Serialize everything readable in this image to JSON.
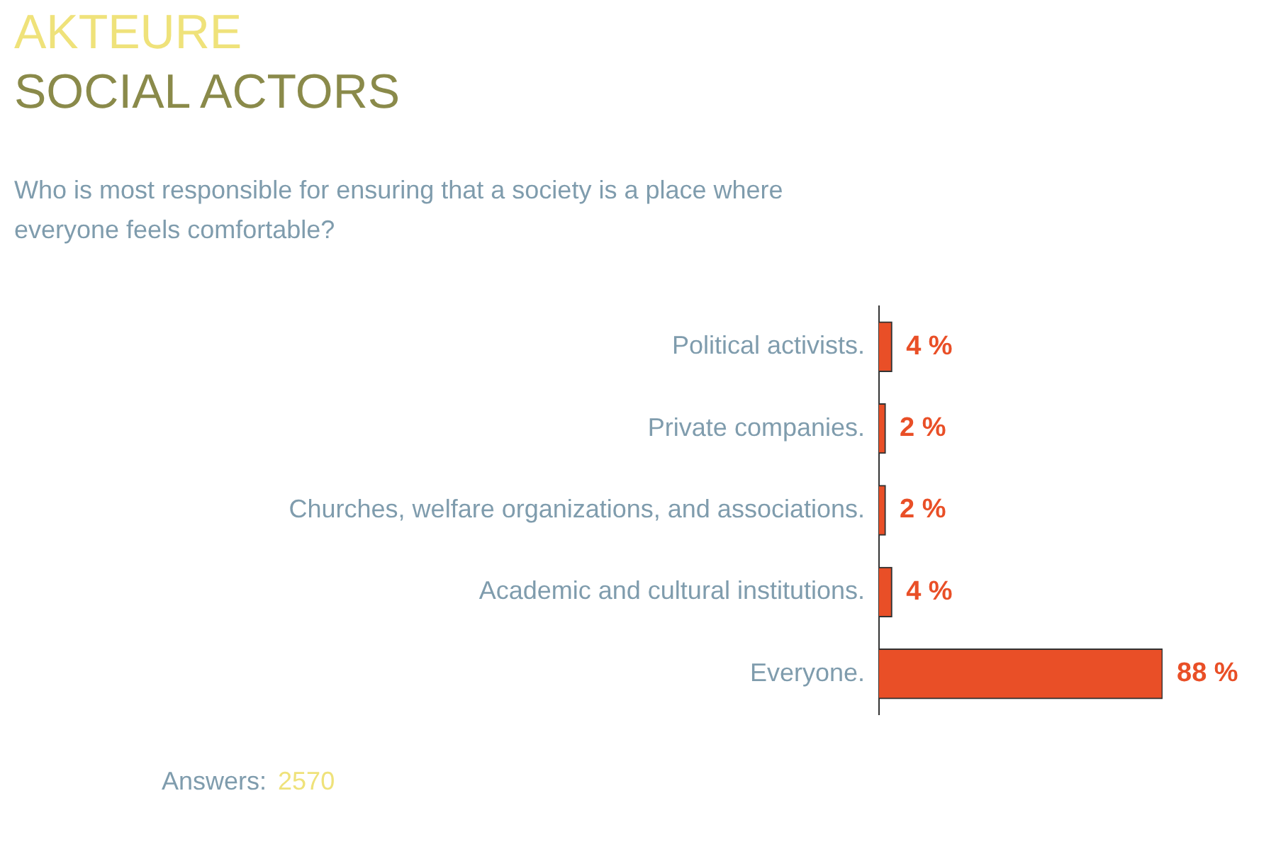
{
  "chart_data": {
    "type": "bar",
    "orientation": "horizontal",
    "title": "AKTEURE",
    "subtitle": "SOCIAL ACTORS",
    "annotations": [
      "Who is most responsible for ensuring that a society is a place where everyone feels comfortable?",
      "Answers:",
      "2570"
    ],
    "categories": [
      "Political activists.",
      "Private companies.",
      "Churches, welfare organizations, and associations.",
      "Academic and cultural institutions.",
      "Everyone."
    ],
    "values": [
      4,
      2,
      2,
      4,
      88
    ],
    "value_labels": [
      "4 %",
      "2 %",
      "2 %",
      "4 %",
      "88 %"
    ],
    "color": "#e94f27",
    "grid": false,
    "legend": false
  }
}
